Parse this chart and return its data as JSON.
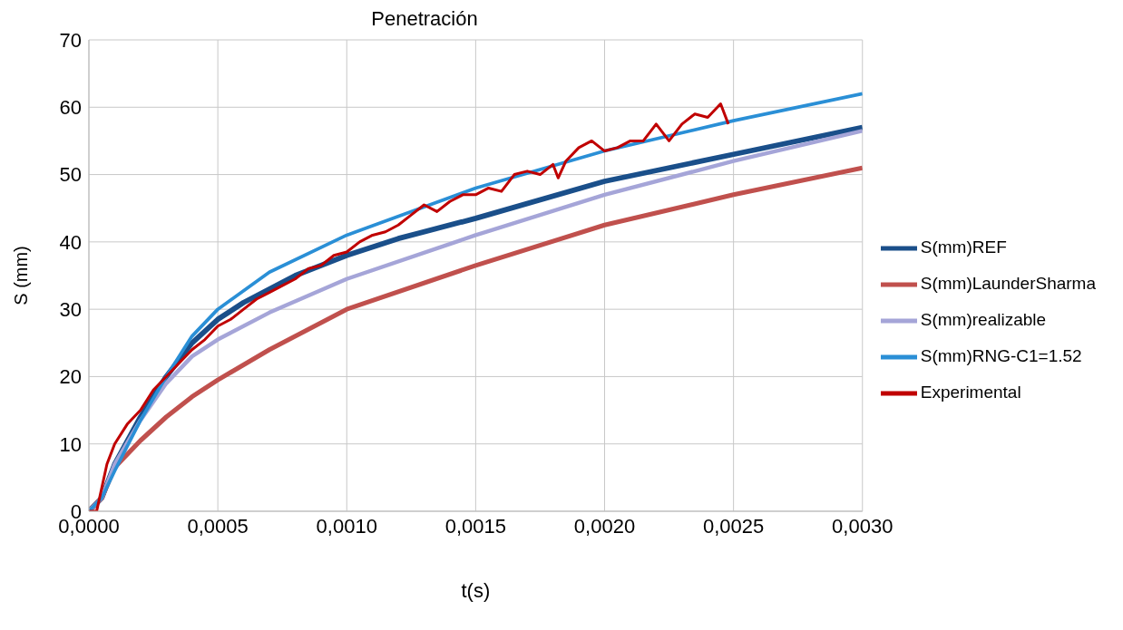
{
  "chart_data": {
    "type": "line",
    "title": "Penetración",
    "xlabel": "t(s)",
    "ylabel": "S (mm)",
    "xlim": [
      0,
      0.003
    ],
    "xticks": [
      {
        "value": 0,
        "label": "0,0000"
      },
      {
        "value": 0.0005,
        "label": "0,0005"
      },
      {
        "value": 0.001,
        "label": "0,0010"
      },
      {
        "value": 0.0015,
        "label": "0,0015"
      },
      {
        "value": 0.002,
        "label": "0,0020"
      },
      {
        "value": 0.0025,
        "label": "0,0025"
      },
      {
        "value": 0.003,
        "label": "0,0030"
      }
    ],
    "ylim": [
      0,
      70
    ],
    "yticks": [
      0,
      10,
      20,
      30,
      40,
      50,
      60,
      70
    ],
    "grid": true,
    "legend": "right",
    "marker": "none",
    "line_style": "solid",
    "series": [
      {
        "name": "S(mm)REF",
        "color": "#1a4f8a",
        "x": [
          0,
          5e-05,
          0.0001,
          0.0002,
          0.0003,
          0.0004,
          0.0005,
          0.0006,
          0.0008,
          0.001,
          0.0012,
          0.0015,
          0.002,
          0.0025,
          0.003
        ],
        "values": [
          0,
          2,
          7,
          14,
          20,
          25,
          28.5,
          31,
          35,
          38,
          40.5,
          43.5,
          49,
          53,
          57
        ]
      },
      {
        "name": "S(mm)LaunderSharma",
        "color": "#c0504d",
        "x": [
          0,
          5e-05,
          0.0001,
          0.0002,
          0.0003,
          0.0004,
          0.0005,
          0.0007,
          0.001,
          0.0015,
          0.002,
          0.0025,
          0.003
        ],
        "values": [
          0,
          2,
          6.5,
          10.5,
          14,
          17,
          19.5,
          24,
          30,
          36.5,
          42.5,
          47,
          51
        ]
      },
      {
        "name": "S(mm)realizable",
        "color": "#a5a5d8",
        "x": [
          0,
          5e-05,
          0.0001,
          0.0002,
          0.0003,
          0.0004,
          0.0005,
          0.0007,
          0.001,
          0.0015,
          0.002,
          0.0025,
          0.003
        ],
        "values": [
          0,
          2,
          7,
          13.5,
          19,
          23,
          25.5,
          29.5,
          34.5,
          41,
          47,
          52,
          56.5
        ]
      },
      {
        "name": "S(mm)RNG-C1=1.52",
        "color": "#2a8fd6",
        "x": [
          0,
          5e-05,
          0.0001,
          0.0002,
          0.0003,
          0.0004,
          0.0005,
          0.0007,
          0.001,
          0.0015,
          0.002,
          0.0025,
          0.003
        ],
        "values": [
          0,
          2,
          6,
          13.5,
          20,
          26,
          30,
          35.5,
          41,
          48,
          53.5,
          58,
          62
        ]
      },
      {
        "name": "Experimental",
        "color": "#c00000",
        "x": [
          0,
          3e-05,
          7e-05,
          0.0001,
          0.00015,
          0.0002,
          0.00025,
          0.0003,
          0.00035,
          0.0004,
          0.00045,
          0.0005,
          0.00055,
          0.0006,
          0.00065,
          0.0007,
          0.00075,
          0.0008,
          0.00085,
          0.0009,
          0.00095,
          0.001,
          0.00105,
          0.0011,
          0.00115,
          0.0012,
          0.00125,
          0.0013,
          0.00135,
          0.0014,
          0.00145,
          0.0015,
          0.00155,
          0.0016,
          0.00165,
          0.0017,
          0.00175,
          0.0018,
          0.00182,
          0.00185,
          0.0019,
          0.00195,
          0.002,
          0.00205,
          0.0021,
          0.00215,
          0.0022,
          0.00225,
          0.0023,
          0.00235,
          0.0024,
          0.00245,
          0.00248
        ],
        "values": [
          0,
          0,
          7,
          10,
          13,
          15,
          18,
          20,
          22,
          24,
          25.5,
          27.5,
          28.5,
          30,
          31.5,
          32.5,
          33.5,
          34.5,
          36,
          36.5,
          38,
          38.5,
          40,
          41,
          41.5,
          42.5,
          44,
          45.5,
          44.5,
          46,
          47,
          47,
          48,
          47.5,
          50,
          50.5,
          50,
          51.5,
          49.5,
          52,
          54,
          55,
          53.5,
          54,
          55,
          55,
          57.5,
          55,
          57.5,
          59,
          58.5,
          60.5,
          57.5
        ]
      }
    ]
  }
}
